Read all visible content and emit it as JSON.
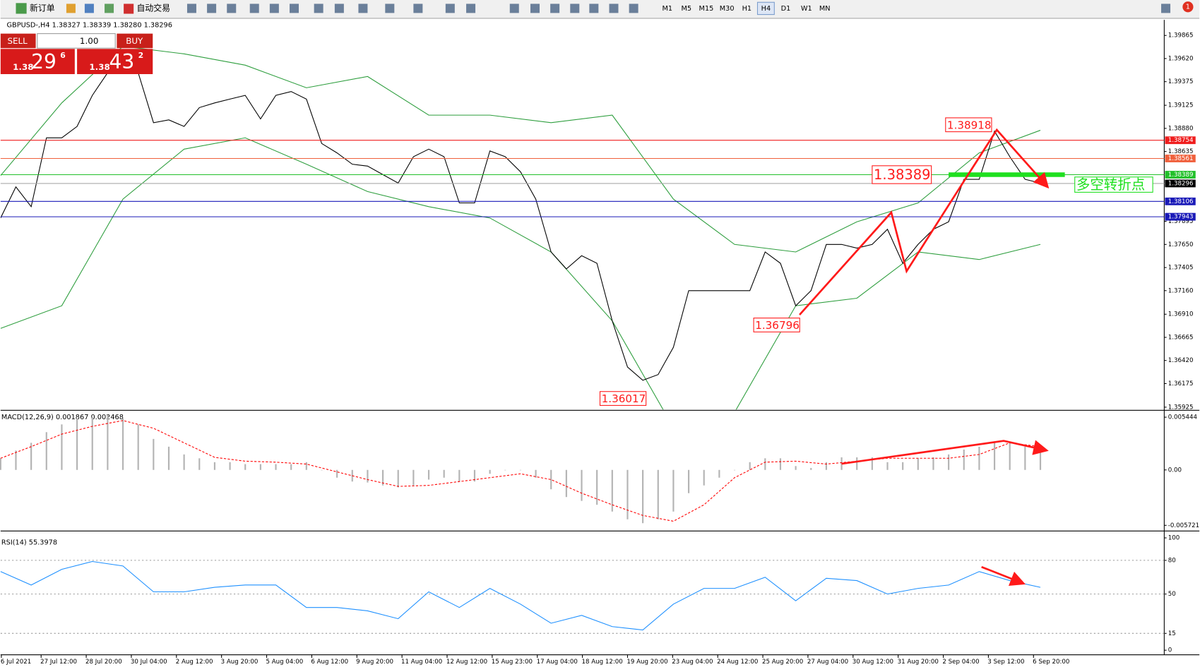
{
  "toolbar": {
    "new_order": "新订单",
    "auto_trading": "自动交易",
    "timeframes": [
      "M1",
      "M5",
      "M15",
      "M30",
      "H1",
      "H4",
      "D1",
      "W1",
      "MN"
    ],
    "active_timeframe": "H4",
    "notifications": "1"
  },
  "one_click": {
    "sell": "SELL",
    "buy": "BUY",
    "lots": "1.00",
    "bid_big": "1.38",
    "bid_main": "29",
    "bid_small": "6",
    "ask_big": "1.38",
    "ask_main": "43",
    "ask_small": "2"
  },
  "time_axis": [
    "6 Jul 2021",
    "27 Jul 12:00",
    "28 Jul 20:00",
    "30 Jul 04:00",
    "2 Aug 12:00",
    "3 Aug 20:00",
    "5 Aug 04:00",
    "6 Aug 12:00",
    "9 Aug 20:00",
    "11 Aug 04:00",
    "12 Aug 12:00",
    "15 Aug 23:00",
    "17 Aug 04:00",
    "18 Aug 12:00",
    "19 Aug 20:00",
    "23 Aug 04:00",
    "24 Aug 12:00",
    "25 Aug 20:00",
    "27 Aug 04:00",
    "30 Aug 12:00",
    "31 Aug 20:00",
    "2 Sep 04:00",
    "3 Sep 12:00",
    "6 Sep 20:00"
  ],
  "chart_data": [
    {
      "type": "line",
      "title": "GBPUSD-,H4 1.38327 1.38339 1.38280 1.38296",
      "ylim": [
        1.359,
        1.4003
      ],
      "yticks": [
        1.39865,
        {
          "value": 1.3962,
          "label": "1.39620"
        },
        1.39375,
        1.39125,
        {
          "value": 1.3888,
          "label": "1.38880"
        },
        1.38635,
        1.37895,
        {
          "value": 1.3765,
          "label": "1.37650"
        },
        1.37405,
        {
          "value": 1.3716,
          "label": "1.37160"
        },
        {
          "value": 1.3691,
          "label": "1.36910"
        },
        1.36665,
        {
          "value": 1.3642,
          "label": "1.36420"
        },
        1.36175,
        1.35925
      ],
      "series": [
        {
          "color": "#2e9e3e",
          "values": [
            1.3838,
            1.3915,
            1.3975,
            1.3967,
            1.3955,
            1.3931,
            1.3943,
            1.3902,
            1.3902,
            1.3894,
            1.3902,
            1.3813,
            1.3765,
            1.3757,
            1.3789,
            1.3809,
            1.3862,
            1.3886
          ]
        },
        {
          "color": "#2e9e3e",
          "values": [
            1.3676,
            1.37,
            1.3813,
            1.3866,
            1.3878,
            1.385,
            1.3821,
            1.3805,
            1.3793,
            1.3757,
            1.3684,
            1.3571,
            1.3587,
            1.37,
            1.3708,
            1.3757,
            1.3749,
            1.3765
          ]
        },
        {
          "color": "#000000",
          "values": [
            1.3793,
            1.3826,
            1.3805,
            1.3878,
            1.3878,
            1.389,
            1.3923,
            1.3947,
            1.3959,
            1.3947,
            1.3894,
            1.3897,
            1.389,
            1.391,
            1.3915,
            1.3919,
            1.3923,
            1.3898,
            1.3923,
            1.3927,
            1.3919,
            1.3872,
            1.3862,
            1.385,
            1.3848,
            1.3839,
            1.383,
            1.3858,
            1.3866,
            1.3858,
            1.3809,
            1.3809,
            1.3864,
            1.3858,
            1.3842,
            1.3813,
            1.3757,
            1.3739,
            1.3753,
            1.3745,
            1.3684,
            1.3635,
            1.3621,
            1.3627,
            1.3656,
            1.3716,
            1.3716,
            1.3716,
            1.3716,
            1.3716,
            1.3757,
            1.3745,
            1.37,
            1.3716,
            1.3765,
            1.3765,
            1.3761,
            1.3765,
            1.3781,
            1.3745,
            1.3765,
            1.3781,
            1.3789,
            1.3834,
            1.3834,
            1.3885,
            1.3858,
            1.3834,
            1.383
          ]
        }
      ],
      "levels": [
        {
          "value": 1.38754,
          "color": "#f01e1e"
        },
        {
          "value": 1.38561,
          "color": "#f0603c"
        },
        {
          "value": 1.38389,
          "color": "#22c02a"
        },
        {
          "value": 1.38296,
          "color": "#000000"
        },
        {
          "value": 1.38106,
          "color": "#1a1ab8"
        },
        {
          "value": 1.37943,
          "color": "#1a1ab8"
        }
      ],
      "annotations": [
        1.38918,
        1.38389,
        1.36796,
        1.36017
      ],
      "note": "多空转折点"
    },
    {
      "type": "macd",
      "title": "MACD(12,26,9) 0.001867 0.002468",
      "ylim": [
        -0.00615,
        0.006
      ],
      "yticks": [
        0.005444,
        {
          "value": 0,
          "label": "0.00"
        },
        -0.005721
      ],
      "histogram": {
        "color": "#b4b4b4",
        "values": [
          0.0012,
          0.002,
          0.0028,
          0.0039,
          0.0047,
          0.0053,
          0.0055,
          0.0057,
          0.0053,
          0.0047,
          0.0032,
          0.0024,
          0.0016,
          0.0012,
          0.0008,
          0.0008,
          0.0006,
          0.0006,
          0.0006,
          0.0006,
          0.0008,
          0,
          -0.0008,
          -0.0012,
          -0.0013,
          -0.0016,
          -0.0018,
          -0.0016,
          -0.001,
          -0.0008,
          -0.0012,
          -0.0012,
          -0.0004,
          0,
          0,
          -0.0008,
          -0.002,
          -0.0028,
          -0.0032,
          -0.0036,
          -0.0043,
          -0.0051,
          -0.0055,
          -0.0051,
          -0.0043,
          -0.0024,
          -0.0016,
          -0.0008,
          0,
          0.0008,
          0.0012,
          0.0012,
          0.0004,
          0.0002,
          0.0008,
          0.0013,
          0.0013,
          0.0013,
          0.0008,
          0.0008,
          0.0012,
          0.0013,
          0.0016,
          0.0021,
          0.0024,
          0.0028,
          0.0029,
          0.0024,
          0.002
        ]
      },
      "signal": {
        "color": "#ff0000",
        "values": [
          0.0012,
          0.0024,
          0.0037,
          0.0045,
          0.0051,
          0.0043,
          0.0028,
          0.0013,
          0.0009,
          0.0008,
          0.0006,
          -0.0002,
          -0.001,
          -0.0017,
          -0.0016,
          -0.0012,
          -0.0008,
          -0.0004,
          -0.001,
          -0.0024,
          -0.0036,
          -0.0047,
          -0.0053,
          -0.0036,
          -0.0008,
          0.0008,
          0.0009,
          0.0006,
          0.0009,
          0.0012,
          0.0012,
          0.0012,
          0.0016,
          0.0028,
          0.0024
        ]
      }
    },
    {
      "type": "line",
      "title": "RSI(14) 55.3978",
      "ylim": [
        0,
        100
      ],
      "yticks": [
        100,
        80,
        50,
        15,
        0
      ],
      "series": [
        {
          "color": "#1e90ff",
          "values": [
            70,
            58,
            72,
            79,
            75,
            52,
            52,
            56,
            58,
            58,
            38,
            38,
            35,
            28,
            52,
            38,
            55,
            41,
            24,
            31,
            21,
            18,
            41,
            55,
            55,
            65,
            44,
            64,
            62,
            50,
            55,
            58,
            70,
            62,
            56
          ]
        }
      ]
    }
  ]
}
